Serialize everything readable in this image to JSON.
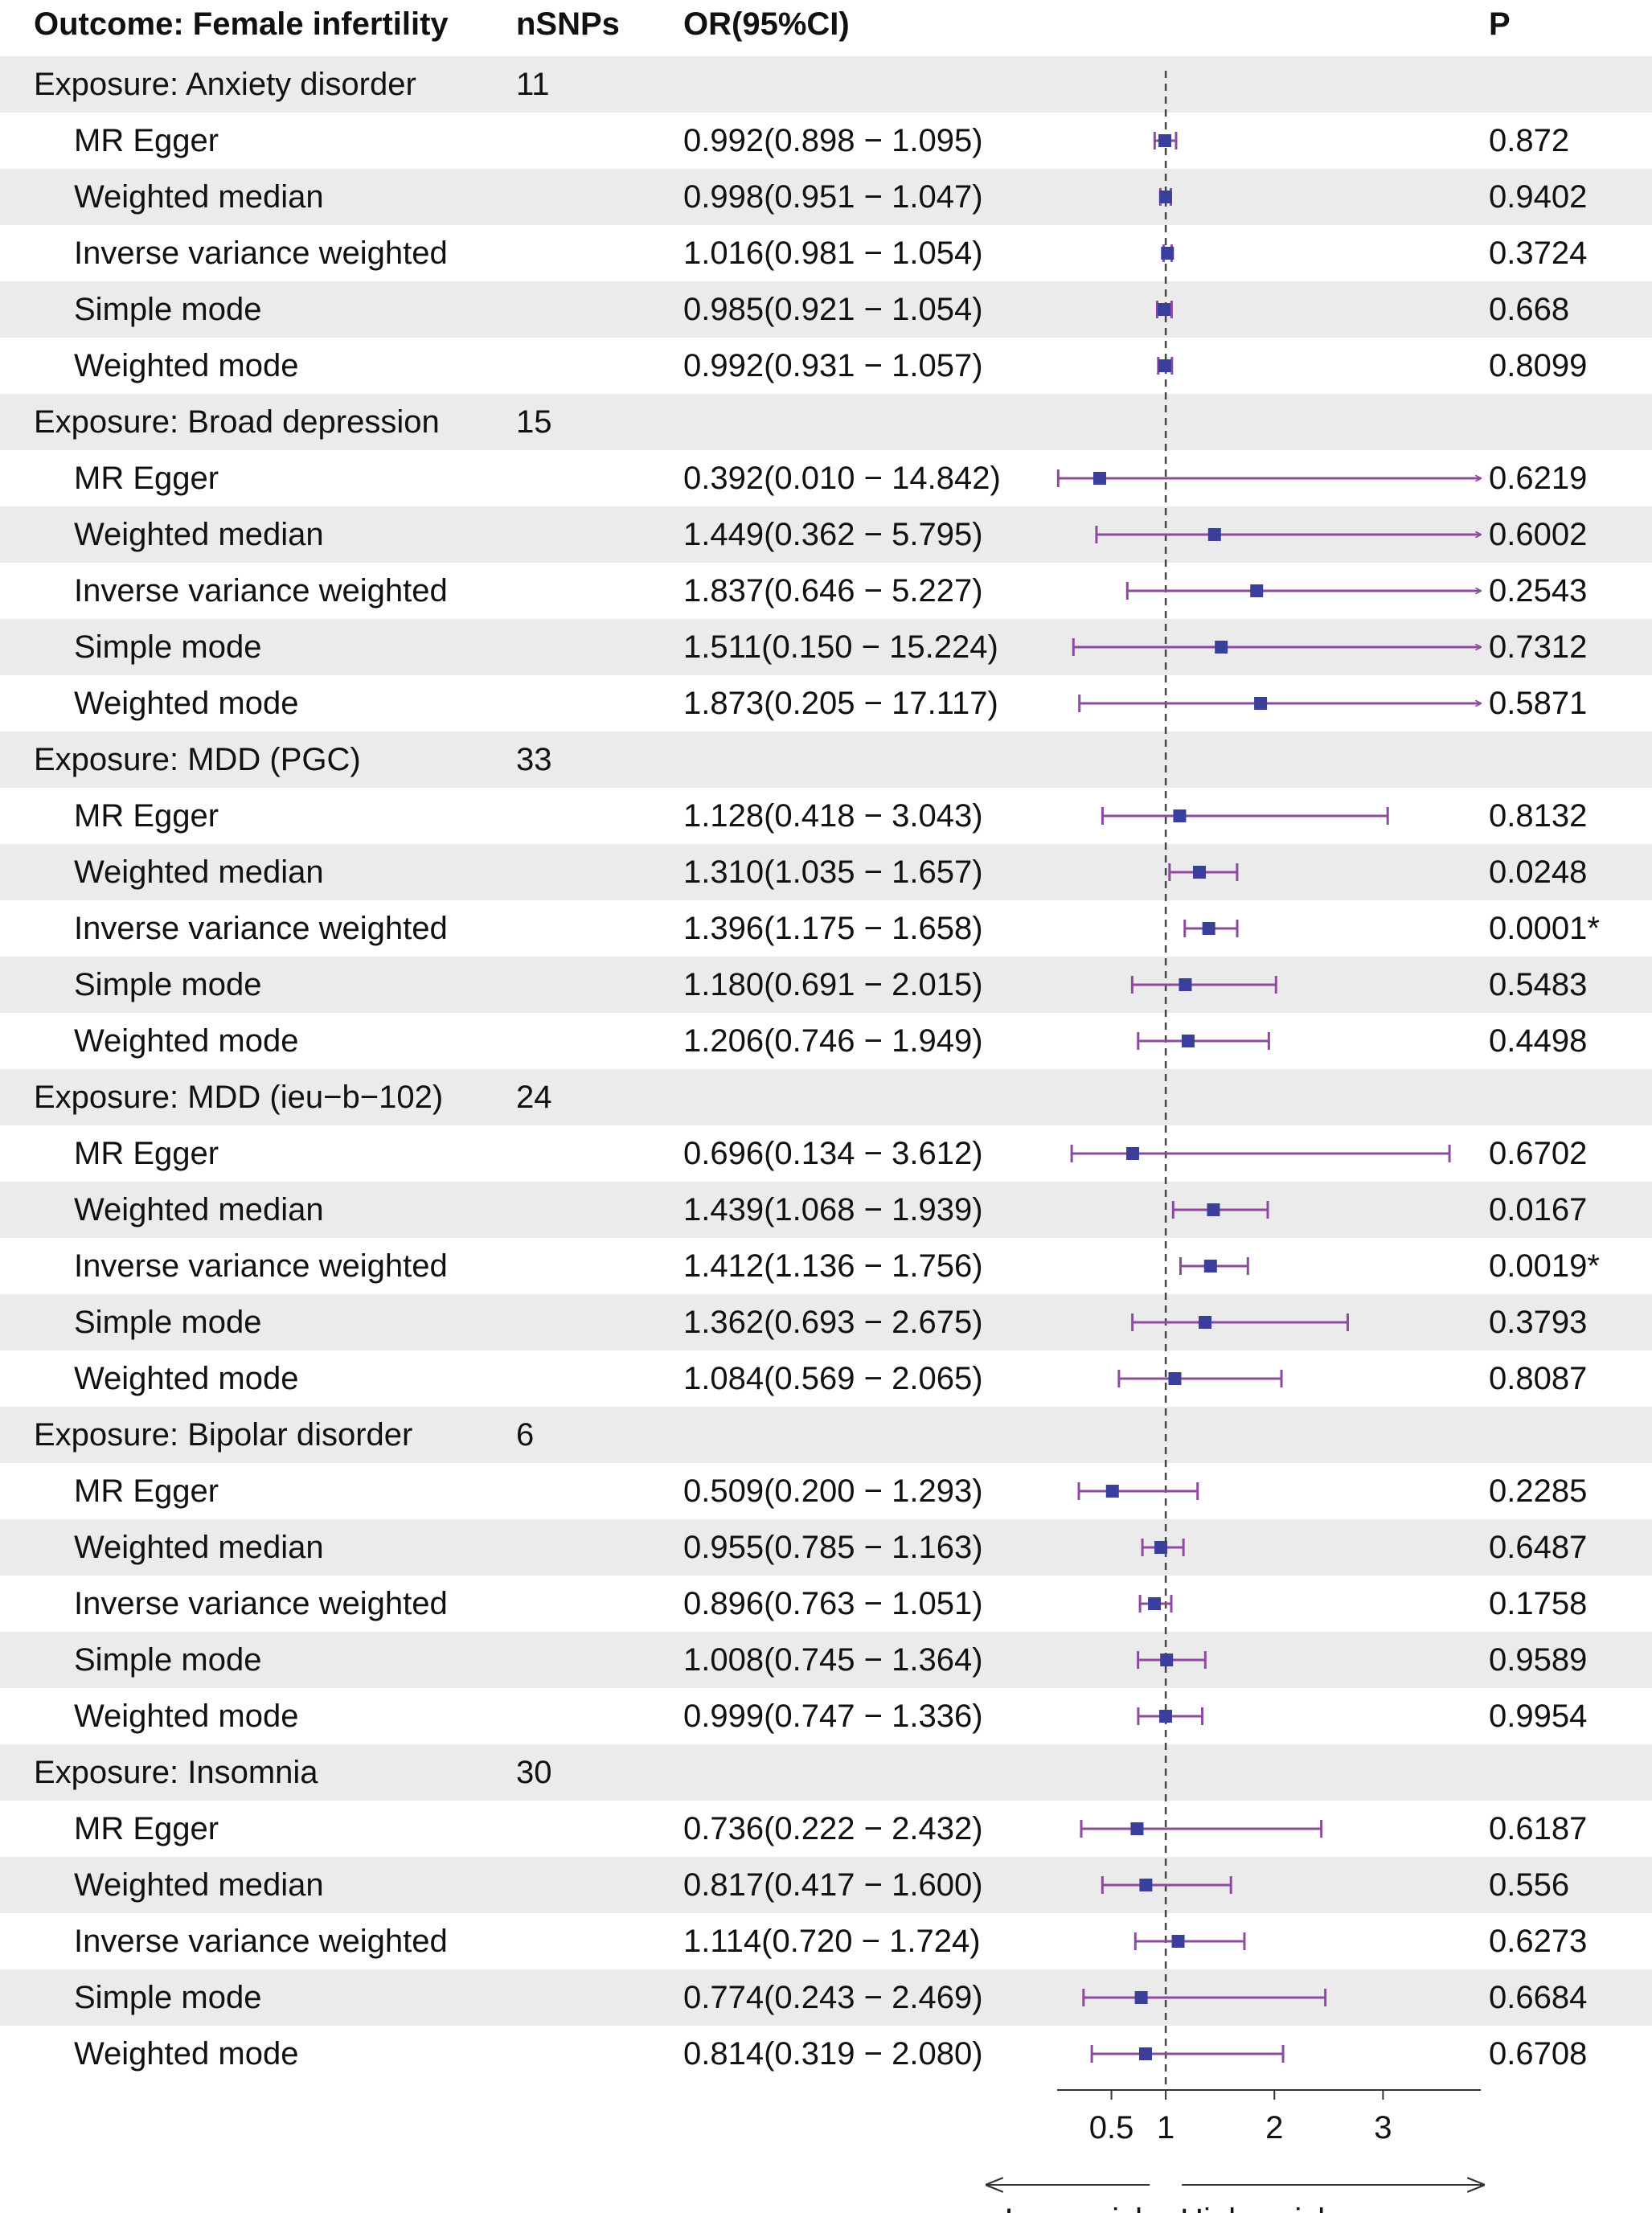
{
  "headers": {
    "outcome": "Outcome: Female infertility",
    "nsnps": "nSNPs",
    "or": "OR(95%CI)",
    "p": "P"
  },
  "colors": {
    "point": "#3b3f9c",
    "ci_line": "#8e4aa0",
    "shade": "#ebebeb",
    "ref_line": "#444444"
  },
  "chart_data": {
    "type": "forest",
    "title": "Outcome: Female infertility",
    "ref_value": 1,
    "xlim": [
      0,
      3.9
    ],
    "ticks": [
      0.5,
      1,
      2,
      3
    ],
    "tick_labels": [
      "0.5",
      "1",
      "2",
      "3"
    ],
    "direction_labels": {
      "lower": "Lower risk",
      "higher": "Higher risk"
    },
    "groups": [
      {
        "exposure": "Exposure: Anxiety disorder",
        "nsnps": "11",
        "rows": [
          {
            "method": "MR Egger",
            "or_text": "0.992(0.898 − 1.095)",
            "p": "0.872",
            "or": 0.992,
            "lo": 0.898,
            "hi": 1.095
          },
          {
            "method": "Weighted median",
            "or_text": "0.998(0.951 − 1.047)",
            "p": "0.9402",
            "or": 0.998,
            "lo": 0.951,
            "hi": 1.047
          },
          {
            "method": "Inverse variance weighted",
            "or_text": "1.016(0.981 − 1.054)",
            "p": "0.3724",
            "or": 1.016,
            "lo": 0.981,
            "hi": 1.054
          },
          {
            "method": "Simple mode",
            "or_text": "0.985(0.921 − 1.054)",
            "p": "0.668",
            "or": 0.985,
            "lo": 0.921,
            "hi": 1.054
          },
          {
            "method": "Weighted mode",
            "or_text": "0.992(0.931 − 1.057)",
            "p": "0.8099",
            "or": 0.992,
            "lo": 0.931,
            "hi": 1.057
          }
        ]
      },
      {
        "exposure": "Exposure: Broad depression",
        "nsnps": "15",
        "rows": [
          {
            "method": "MR Egger",
            "or_text": "0.392(0.010 − 14.842)",
            "p": "0.6219",
            "or": 0.392,
            "lo": 0.01,
            "hi": 14.842
          },
          {
            "method": "Weighted median",
            "or_text": "1.449(0.362 − 5.795)",
            "p": "0.6002",
            "or": 1.449,
            "lo": 0.362,
            "hi": 5.795
          },
          {
            "method": "Inverse variance weighted",
            "or_text": "1.837(0.646 − 5.227)",
            "p": "0.2543",
            "or": 1.837,
            "lo": 0.646,
            "hi": 5.227
          },
          {
            "method": "Simple mode",
            "or_text": "1.511(0.150 − 15.224)",
            "p": "0.7312",
            "or": 1.511,
            "lo": 0.15,
            "hi": 15.224
          },
          {
            "method": "Weighted mode",
            "or_text": "1.873(0.205 − 17.117)",
            "p": "0.5871",
            "or": 1.873,
            "lo": 0.205,
            "hi": 17.117
          }
        ]
      },
      {
        "exposure": "Exposure: MDD (PGC)",
        "nsnps": "33",
        "rows": [
          {
            "method": "MR Egger",
            "or_text": "1.128(0.418 − 3.043)",
            "p": "0.8132",
            "or": 1.128,
            "lo": 0.418,
            "hi": 3.043
          },
          {
            "method": "Weighted median",
            "or_text": "1.310(1.035 − 1.657)",
            "p": "0.0248",
            "or": 1.31,
            "lo": 1.035,
            "hi": 1.657
          },
          {
            "method": "Inverse variance weighted",
            "or_text": "1.396(1.175 − 1.658)",
            "p": "0.0001*",
            "or": 1.396,
            "lo": 1.175,
            "hi": 1.658
          },
          {
            "method": "Simple mode",
            "or_text": "1.180(0.691 − 2.015)",
            "p": "0.5483",
            "or": 1.18,
            "lo": 0.691,
            "hi": 2.015
          },
          {
            "method": "Weighted mode",
            "or_text": "1.206(0.746 − 1.949)",
            "p": "0.4498",
            "or": 1.206,
            "lo": 0.746,
            "hi": 1.949
          }
        ]
      },
      {
        "exposure": "Exposure: MDD (ieu−b−102)",
        "nsnps": "24",
        "rows": [
          {
            "method": "MR Egger",
            "or_text": "0.696(0.134 − 3.612)",
            "p": "0.6702",
            "or": 0.696,
            "lo": 0.134,
            "hi": 3.612
          },
          {
            "method": "Weighted median",
            "or_text": "1.439(1.068 − 1.939)",
            "p": "0.0167",
            "or": 1.439,
            "lo": 1.068,
            "hi": 1.939
          },
          {
            "method": "Inverse variance weighted",
            "or_text": "1.412(1.136 − 1.756)",
            "p": "0.0019*",
            "or": 1.412,
            "lo": 1.136,
            "hi": 1.756
          },
          {
            "method": "Simple mode",
            "or_text": "1.362(0.693 − 2.675)",
            "p": "0.3793",
            "or": 1.362,
            "lo": 0.693,
            "hi": 2.675
          },
          {
            "method": "Weighted mode",
            "or_text": "1.084(0.569 − 2.065)",
            "p": "0.8087",
            "or": 1.084,
            "lo": 0.569,
            "hi": 2.065
          }
        ]
      },
      {
        "exposure": "Exposure: Bipolar disorder",
        "nsnps": "6",
        "rows": [
          {
            "method": "MR Egger",
            "or_text": "0.509(0.200 − 1.293)",
            "p": "0.2285",
            "or": 0.509,
            "lo": 0.2,
            "hi": 1.293
          },
          {
            "method": "Weighted median",
            "or_text": "0.955(0.785 − 1.163)",
            "p": "0.6487",
            "or": 0.955,
            "lo": 0.785,
            "hi": 1.163
          },
          {
            "method": "Inverse variance weighted",
            "or_text": "0.896(0.763 − 1.051)",
            "p": "0.1758",
            "or": 0.896,
            "lo": 0.763,
            "hi": 1.051
          },
          {
            "method": "Simple mode",
            "or_text": "1.008(0.745 − 1.364)",
            "p": "0.9589",
            "or": 1.008,
            "lo": 0.745,
            "hi": 1.364
          },
          {
            "method": "Weighted mode",
            "or_text": "0.999(0.747 − 1.336)",
            "p": "0.9954",
            "or": 0.999,
            "lo": 0.747,
            "hi": 1.336
          }
        ]
      },
      {
        "exposure": "Exposure: Insomnia",
        "nsnps": "30",
        "rows": [
          {
            "method": "MR Egger",
            "or_text": "0.736(0.222 − 2.432)",
            "p": "0.6187",
            "or": 0.736,
            "lo": 0.222,
            "hi": 2.432
          },
          {
            "method": "Weighted median",
            "or_text": "0.817(0.417 − 1.600)",
            "p": "0.556",
            "or": 0.817,
            "lo": 0.417,
            "hi": 1.6
          },
          {
            "method": "Inverse variance weighted",
            "or_text": "1.114(0.720 − 1.724)",
            "p": "0.6273",
            "or": 1.114,
            "lo": 0.72,
            "hi": 1.724
          },
          {
            "method": "Simple mode",
            "or_text": "0.774(0.243 − 2.469)",
            "p": "0.6684",
            "or": 0.774,
            "lo": 0.243,
            "hi": 2.469
          },
          {
            "method": "Weighted mode",
            "or_text": "0.814(0.319 − 2.080)",
            "p": "0.6708",
            "or": 0.814,
            "lo": 0.319,
            "hi": 2.08
          }
        ]
      }
    ]
  }
}
